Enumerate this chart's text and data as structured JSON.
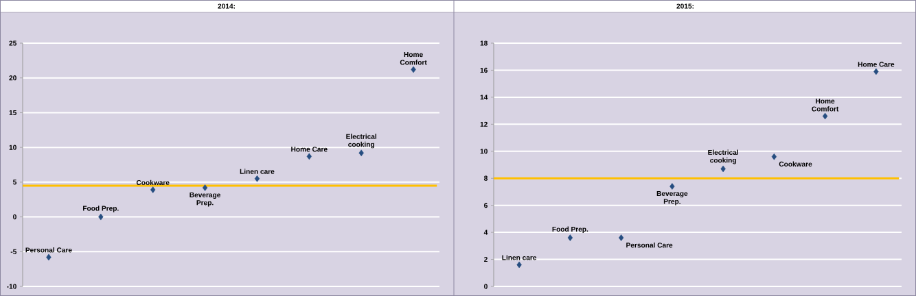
{
  "chart_data": [
    {
      "type": "scatter",
      "title": "2014:",
      "categories": [
        null,
        null,
        null,
        null,
        null,
        null,
        null,
        null
      ],
      "marker": "diamond",
      "grid": "y",
      "ylim": [
        -10,
        25
      ],
      "yticks": [
        -10,
        -5,
        0,
        5,
        10,
        15,
        20,
        25
      ],
      "series": [
        {
          "name": "Personal Care",
          "color": "#264d80",
          "values": [
            -5.8,
            null,
            null,
            null,
            null,
            null,
            null,
            null
          ]
        },
        {
          "name": "Food Prep.",
          "color": "#264d80",
          "values": [
            null,
            0,
            null,
            null,
            null,
            null,
            null,
            null
          ]
        },
        {
          "name": "Cookware",
          "color": "#264d80",
          "values": [
            null,
            null,
            3.9,
            null,
            null,
            null,
            null,
            null
          ]
        },
        {
          "name": "Beverage Prep.",
          "color": "#264d80",
          "values": [
            null,
            null,
            null,
            4.2,
            null,
            null,
            null,
            null
          ]
        },
        {
          "name": "Linen care",
          "color": "#264d80",
          "values": [
            null,
            null,
            null,
            null,
            5.5,
            null,
            null,
            null
          ]
        },
        {
          "name": "Home Care",
          "color": "#264d80",
          "values": [
            null,
            null,
            null,
            null,
            null,
            8.7,
            null,
            null
          ]
        },
        {
          "name": "Electrical cooking",
          "color": "#264d80",
          "values": [
            null,
            null,
            null,
            null,
            null,
            null,
            9.2,
            null
          ]
        },
        {
          "name": "Home Comfort",
          "color": "#264d80",
          "values": [
            null,
            null,
            null,
            null,
            null,
            null,
            null,
            21.2
          ]
        }
      ],
      "ref_lines": [
        {
          "axis": "y",
          "value": 4.5,
          "color": "#ffc000"
        }
      ]
    },
    {
      "type": "scatter",
      "title": "2015:",
      "categories": [
        null,
        null,
        null,
        null,
        null,
        null,
        null,
        null
      ],
      "marker": "diamond",
      "grid": "y",
      "ylim": [
        0,
        18
      ],
      "yticks": [
        0,
        2,
        4,
        6,
        8,
        10,
        12,
        14,
        16,
        18
      ],
      "series": [
        {
          "name": "Linen care",
          "color": "#264d80",
          "values": [
            1.6,
            null,
            null,
            null,
            null,
            null,
            null,
            null
          ]
        },
        {
          "name": "Food Prep.",
          "color": "#264d80",
          "values": [
            null,
            3.6,
            null,
            null,
            null,
            null,
            null,
            null
          ]
        },
        {
          "name": "Personal Care",
          "color": "#264d80",
          "values": [
            null,
            null,
            3.6,
            null,
            null,
            null,
            null,
            null
          ]
        },
        {
          "name": "Beverage Prep.",
          "color": "#264d80",
          "values": [
            null,
            null,
            null,
            7.4,
            null,
            null,
            null,
            null
          ]
        },
        {
          "name": "Electrical cooking",
          "color": "#264d80",
          "values": [
            null,
            null,
            null,
            null,
            8.7,
            null,
            null,
            null
          ]
        },
        {
          "name": "Cookware",
          "color": "#264d80",
          "values": [
            null,
            null,
            null,
            null,
            null,
            9.6,
            null,
            null
          ]
        },
        {
          "name": "Home Comfort",
          "color": "#264d80",
          "values": [
            null,
            null,
            null,
            null,
            null,
            null,
            12.6,
            null
          ]
        },
        {
          "name": "Home Care",
          "color": "#264d80",
          "values": [
            null,
            null,
            null,
            null,
            null,
            null,
            null,
            15.9
          ]
        }
      ],
      "ref_lines": [
        {
          "axis": "y",
          "value": 8,
          "color": "#ffc000"
        }
      ]
    }
  ]
}
